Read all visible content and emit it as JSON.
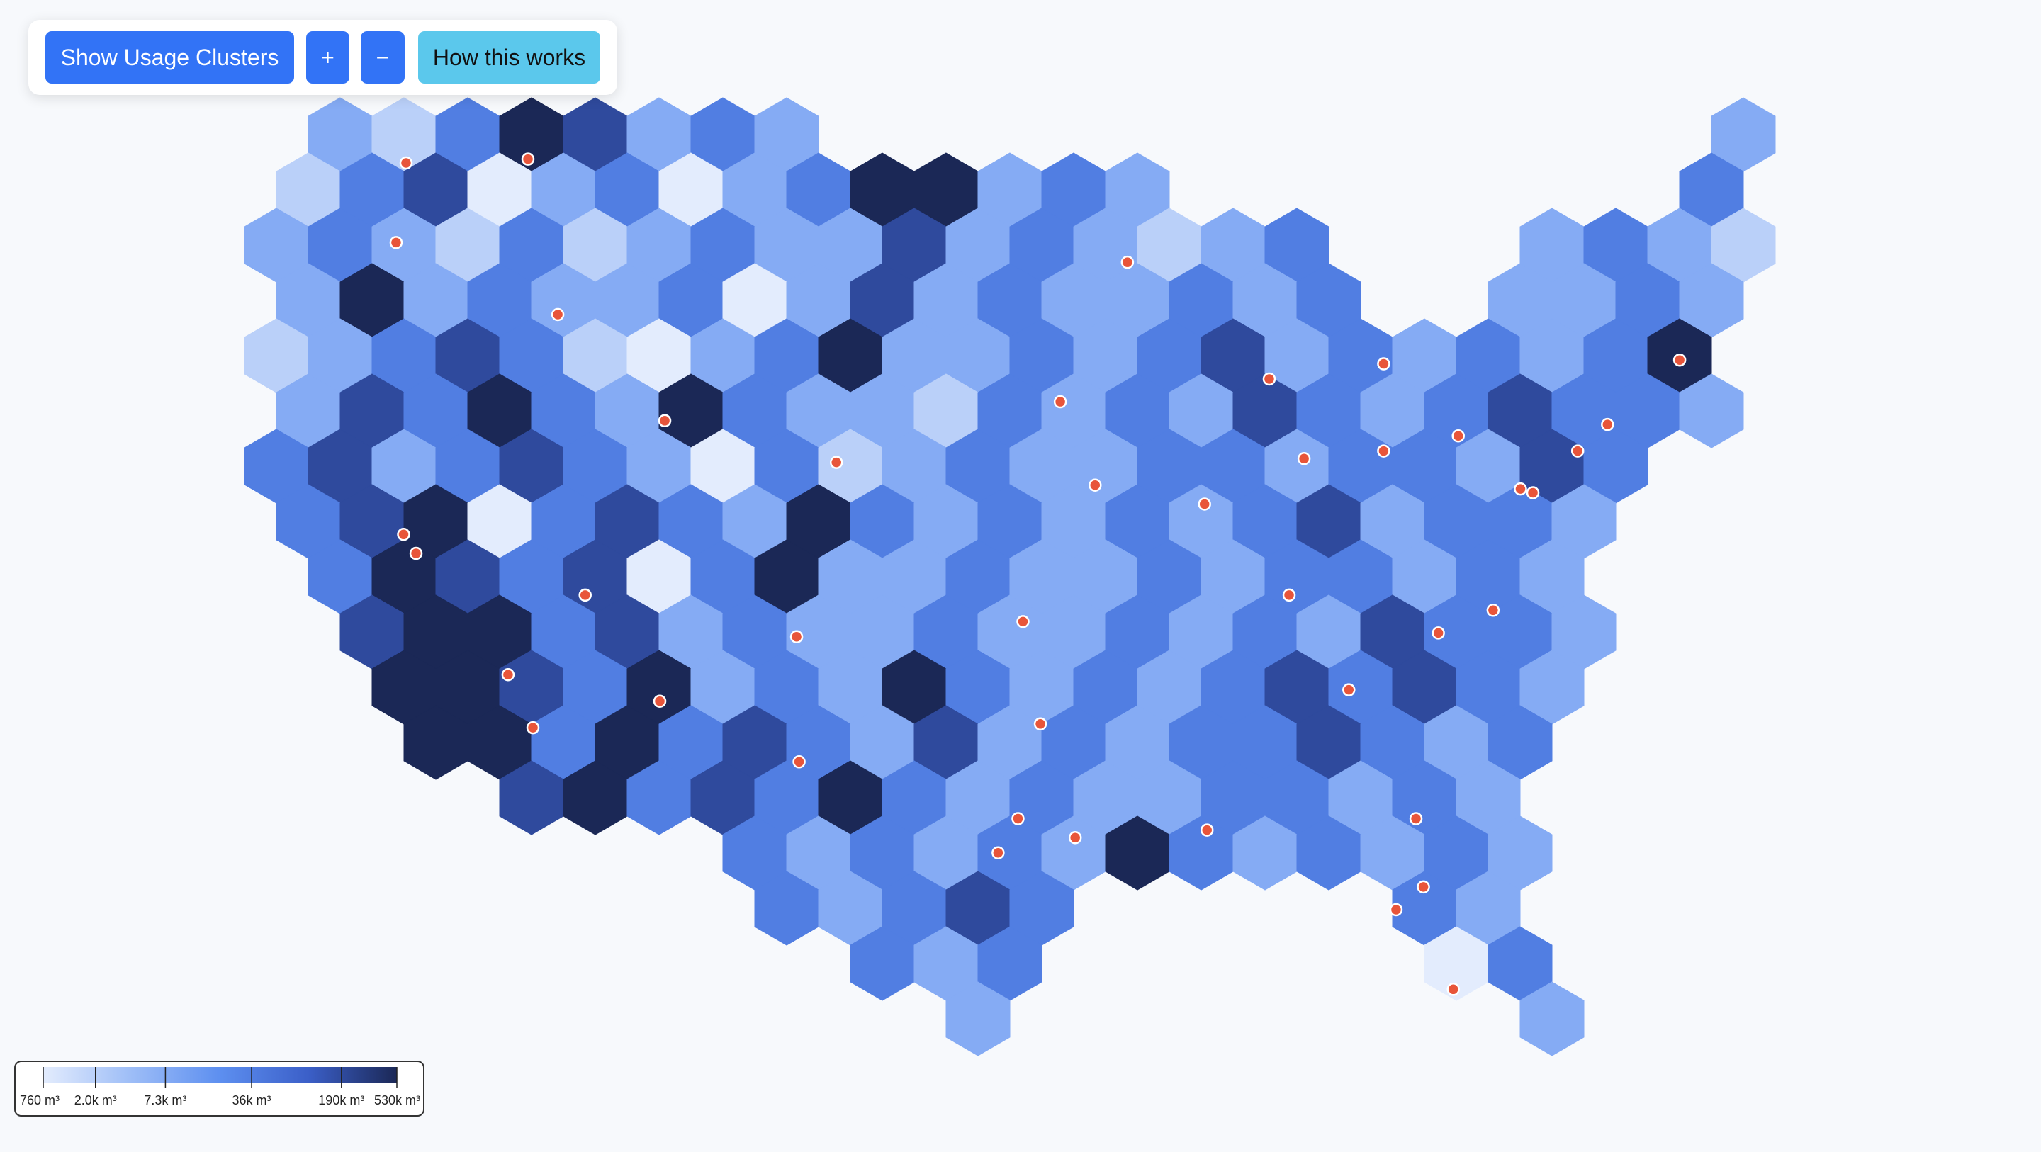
{
  "controls": {
    "buttons": [
      "Show Usage Clusters",
      "+",
      "−",
      "How this works"
    ]
  },
  "legend": {
    "scale": "log",
    "domain": [
      760,
      530000
    ],
    "colors": [
      "#e3ecfd",
      "#9dbdf7",
      "#5d8ff0",
      "#3b5fc8",
      "#1b2856"
    ],
    "ticks": [
      {
        "value": 760,
        "label": "760 m³"
      },
      {
        "value": 2000,
        "label": "2.0k m³"
      },
      {
        "value": 7300,
        "label": "7.3k m³"
      },
      {
        "value": 36000,
        "label": "36k m³"
      },
      {
        "value": 190000,
        "label": "190k m³"
      },
      {
        "value": 530000,
        "label": "530k m³"
      }
    ]
  },
  "hexbins": {
    "rows": [
      [
        null,
        7300,
        2000,
        36000,
        530000,
        190000,
        7300,
        36000,
        7300,
        null,
        null,
        null,
        null,
        null,
        null,
        null,
        null,
        null,
        null,
        null,
        null,
        null,
        null,
        7300
      ],
      [
        2000,
        36000,
        190000,
        760,
        7300,
        36000,
        760,
        7300,
        36000,
        530000,
        530000,
        7300,
        36000,
        7300,
        null,
        null,
        null,
        null,
        null,
        null,
        null,
        null,
        36000,
        null
      ],
      [
        7300,
        36000,
        7300,
        2000,
        36000,
        2000,
        7300,
        36000,
        7300,
        7300,
        190000,
        7300,
        36000,
        7300,
        2000,
        7300,
        36000,
        null,
        null,
        null,
        7300,
        36000,
        7300,
        2000
      ],
      [
        7300,
        530000,
        7300,
        36000,
        7300,
        7300,
        36000,
        760,
        7300,
        190000,
        7300,
        36000,
        7300,
        7300,
        36000,
        7300,
        36000,
        null,
        null,
        7300,
        7300,
        36000,
        7300,
        null
      ],
      [
        2000,
        7300,
        36000,
        190000,
        36000,
        2000,
        760,
        7300,
        36000,
        530000,
        7300,
        7300,
        36000,
        7300,
        36000,
        190000,
        7300,
        36000,
        7300,
        36000,
        7300,
        36000,
        530000,
        null
      ],
      [
        7300,
        190000,
        36000,
        530000,
        36000,
        7300,
        530000,
        36000,
        7300,
        7300,
        2000,
        36000,
        7300,
        36000,
        7300,
        190000,
        36000,
        7300,
        36000,
        190000,
        36000,
        36000,
        7300,
        null
      ],
      [
        36000,
        190000,
        7300,
        36000,
        190000,
        36000,
        7300,
        760,
        36000,
        2000,
        7300,
        36000,
        7300,
        7300,
        36000,
        36000,
        7300,
        36000,
        36000,
        7300,
        190000,
        36000,
        null,
        null
      ],
      [
        36000,
        190000,
        530000,
        760,
        36000,
        190000,
        36000,
        7300,
        530000,
        36000,
        7300,
        36000,
        7300,
        36000,
        7300,
        36000,
        190000,
        7300,
        36000,
        36000,
        7300,
        null,
        null,
        null
      ],
      [
        null,
        36000,
        530000,
        190000,
        36000,
        190000,
        760,
        36000,
        530000,
        7300,
        7300,
        36000,
        7300,
        7300,
        36000,
        7300,
        36000,
        36000,
        7300,
        36000,
        7300,
        null,
        null,
        null
      ],
      [
        null,
        190000,
        530000,
        530000,
        36000,
        190000,
        7300,
        36000,
        7300,
        7300,
        36000,
        7300,
        7300,
        36000,
        7300,
        36000,
        7300,
        190000,
        36000,
        36000,
        7300,
        null,
        null,
        null
      ],
      [
        null,
        null,
        530000,
        530000,
        190000,
        36000,
        530000,
        7300,
        36000,
        7300,
        530000,
        36000,
        7300,
        36000,
        7300,
        36000,
        190000,
        36000,
        190000,
        36000,
        7300,
        null,
        null,
        null
      ],
      [
        null,
        null,
        530000,
        530000,
        36000,
        530000,
        36000,
        190000,
        36000,
        7300,
        190000,
        7300,
        36000,
        7300,
        36000,
        36000,
        190000,
        36000,
        7300,
        36000,
        null,
        null,
        null,
        null
      ],
      [
        null,
        null,
        null,
        null,
        190000,
        530000,
        36000,
        190000,
        36000,
        530000,
        36000,
        7300,
        36000,
        7300,
        7300,
        36000,
        36000,
        7300,
        36000,
        7300,
        null,
        null,
        null,
        null
      ],
      [
        null,
        null,
        null,
        null,
        null,
        null,
        null,
        36000,
        7300,
        36000,
        7300,
        36000,
        7300,
        530000,
        36000,
        7300,
        36000,
        7300,
        36000,
        7300,
        null,
        null,
        null,
        null
      ],
      [
        null,
        null,
        null,
        null,
        null,
        null,
        null,
        null,
        36000,
        7300,
        36000,
        190000,
        36000,
        null,
        null,
        null,
        null,
        null,
        36000,
        7300,
        null,
        null,
        null,
        null
      ],
      [
        null,
        null,
        null,
        null,
        null,
        null,
        null,
        null,
        null,
        36000,
        7300,
        36000,
        null,
        null,
        null,
        null,
        null,
        null,
        760,
        36000,
        null,
        null,
        null,
        null
      ],
      [
        null,
        null,
        null,
        null,
        null,
        null,
        null,
        null,
        null,
        null,
        null,
        7300,
        null,
        null,
        null,
        null,
        null,
        null,
        null,
        null,
        7300,
        null,
        null,
        null
      ]
    ]
  },
  "sites": [
    [
      -122.3,
      47.6
    ],
    [
      -122.7,
      45.5
    ],
    [
      -122.4,
      37.8
    ],
    [
      -121.9,
      37.3
    ],
    [
      -118.2,
      34.1
    ],
    [
      -117.2,
      32.7
    ],
    [
      -112.1,
      33.4
    ],
    [
      -115.1,
      36.2
    ],
    [
      -111.9,
      40.8
    ],
    [
      -105,
      39.7
    ],
    [
      -96.8,
      32.8
    ],
    [
      -95.4,
      29.8
    ],
    [
      -97.7,
      30.3
    ],
    [
      -98.5,
      29.4
    ],
    [
      -97.5,
      35.5
    ],
    [
      -94.6,
      39.1
    ],
    [
      -87.6,
      41.9
    ],
    [
      -93.3,
      44.98
    ],
    [
      -83,
      42.3
    ],
    [
      -83,
      40
    ],
    [
      -86.2,
      39.8
    ],
    [
      -90.2,
      38.6
    ],
    [
      -86.8,
      36.2
    ],
    [
      -84.4,
      33.7
    ],
    [
      -80.8,
      35.2
    ],
    [
      -78.6,
      35.8
    ],
    [
      -77,
      38.9
    ],
    [
      -77.5,
      39
    ],
    [
      -75.2,
      40
    ],
    [
      -74,
      40.7
    ],
    [
      -71.1,
      42.4
    ],
    [
      -80,
      40.4
    ],
    [
      -80.2,
      25.8
    ],
    [
      -82.5,
      27.9
    ],
    [
      -81.4,
      28.5
    ],
    [
      -81.7,
      30.3
    ],
    [
      -90.1,
      30
    ],
    [
      -96,
      41.3
    ],
    [
      -106.6,
      35.1
    ],
    [
      -106.5,
      31.8
    ],
    [
      -116.2,
      43.6
    ],
    [
      -117.4,
      47.7
    ]
  ]
}
